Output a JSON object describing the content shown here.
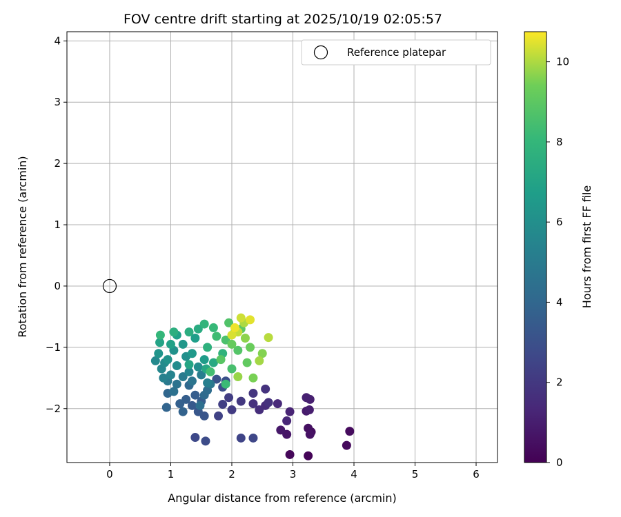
{
  "chart_data": {
    "type": "scatter",
    "title": "FOV centre drift starting at 2025/10/19 02:05:57",
    "xlabel": "Angular distance from reference (arcmin)",
    "ylabel": "Rotation from reference (arcmin)",
    "xlim": [
      -0.7,
      6.35
    ],
    "ylim": [
      -2.88,
      4.15
    ],
    "xticks": [
      0,
      1,
      2,
      3,
      4,
      5,
      6
    ],
    "yticks": [
      -2,
      -1,
      0,
      1,
      2,
      3,
      4
    ],
    "xtick_labels": [
      "0",
      "1",
      "2",
      "3",
      "4",
      "5",
      "6"
    ],
    "ytick_labels": [
      "−2",
      "−1",
      "0",
      "1",
      "2",
      "3",
      "4"
    ],
    "grid": true,
    "colormap": "viridis",
    "colorbar": {
      "label": "Hours from first FF file",
      "range": [
        0,
        10.75
      ],
      "ticks": [
        0,
        2,
        4,
        6,
        8,
        10
      ],
      "tick_labels": [
        "0",
        "2",
        "4",
        "6",
        "8",
        "10"
      ]
    },
    "reference": {
      "name": "Reference platepar",
      "x": 0,
      "y": 0
    },
    "legend": {
      "placement": "upper right",
      "entries": [
        "Reference platepar"
      ]
    },
    "points": [
      {
        "x": 3.25,
        "y": -2.77,
        "h": 0.1
      },
      {
        "x": 2.95,
        "y": -2.75,
        "h": 0.2
      },
      {
        "x": 3.88,
        "y": -2.6,
        "h": 0.3
      },
      {
        "x": 3.93,
        "y": -2.37,
        "h": 0.35
      },
      {
        "x": 3.3,
        "y": -2.38,
        "h": 0.4
      },
      {
        "x": 3.25,
        "y": -2.32,
        "h": 0.5
      },
      {
        "x": 3.28,
        "y": -2.42,
        "h": 0.6
      },
      {
        "x": 2.9,
        "y": -2.42,
        "h": 0.7
      },
      {
        "x": 2.8,
        "y": -2.35,
        "h": 0.8
      },
      {
        "x": 3.22,
        "y": -2.04,
        "h": 0.9
      },
      {
        "x": 3.27,
        "y": -2.02,
        "h": 1.0
      },
      {
        "x": 3.28,
        "y": -1.85,
        "h": 1.05
      },
      {
        "x": 3.22,
        "y": -1.82,
        "h": 1.1
      },
      {
        "x": 2.95,
        "y": -2.05,
        "h": 1.2
      },
      {
        "x": 2.9,
        "y": -2.2,
        "h": 1.3
      },
      {
        "x": 2.75,
        "y": -1.92,
        "h": 1.4
      },
      {
        "x": 2.55,
        "y": -1.95,
        "h": 1.5
      },
      {
        "x": 2.45,
        "y": -2.02,
        "h": 1.6
      },
      {
        "x": 2.35,
        "y": -1.92,
        "h": 1.7
      },
      {
        "x": 2.6,
        "y": -1.9,
        "h": 1.75
      },
      {
        "x": 2.55,
        "y": -1.68,
        "h": 1.8
      },
      {
        "x": 2.35,
        "y": -1.75,
        "h": 1.9
      },
      {
        "x": 2.15,
        "y": -1.88,
        "h": 2.0
      },
      {
        "x": 2.0,
        "y": -2.02,
        "h": 2.1
      },
      {
        "x": 1.95,
        "y": -1.82,
        "h": 2.2
      },
      {
        "x": 1.85,
        "y": -1.93,
        "h": 2.3
      },
      {
        "x": 1.78,
        "y": -2.12,
        "h": 2.4
      },
      {
        "x": 2.15,
        "y": -2.48,
        "h": 2.5
      },
      {
        "x": 2.35,
        "y": -2.48,
        "h": 2.6
      },
      {
        "x": 1.4,
        "y": -2.47,
        "h": 2.7
      },
      {
        "x": 1.57,
        "y": -2.53,
        "h": 2.8
      },
      {
        "x": 1.85,
        "y": -1.65,
        "h": 2.9
      },
      {
        "x": 1.9,
        "y": -1.55,
        "h": 3.0
      },
      {
        "x": 1.75,
        "y": -1.52,
        "h": 3.1
      },
      {
        "x": 1.55,
        "y": -2.12,
        "h": 3.2
      },
      {
        "x": 1.45,
        "y": -2.05,
        "h": 3.3
      },
      {
        "x": 1.35,
        "y": -1.95,
        "h": 3.4
      },
      {
        "x": 1.5,
        "y": -1.88,
        "h": 3.5
      },
      {
        "x": 1.4,
        "y": -1.78,
        "h": 3.55
      },
      {
        "x": 1.25,
        "y": -1.85,
        "h": 3.6
      },
      {
        "x": 1.15,
        "y": -1.92,
        "h": 3.7
      },
      {
        "x": 1.2,
        "y": -2.05,
        "h": 3.8
      },
      {
        "x": 0.93,
        "y": -1.98,
        "h": 3.9
      },
      {
        "x": 0.95,
        "y": -1.75,
        "h": 4.0
      },
      {
        "x": 1.3,
        "y": -1.62,
        "h": 4.1
      },
      {
        "x": 1.55,
        "y": -1.78,
        "h": 4.2
      },
      {
        "x": 1.6,
        "y": -1.7,
        "h": 4.3
      },
      {
        "x": 1.48,
        "y": -1.95,
        "h": 4.4
      },
      {
        "x": 1.05,
        "y": -1.72,
        "h": 4.5
      },
      {
        "x": 1.1,
        "y": -1.6,
        "h": 4.6
      },
      {
        "x": 1.35,
        "y": -1.55,
        "h": 4.7
      },
      {
        "x": 1.65,
        "y": -1.6,
        "h": 4.8
      },
      {
        "x": 0.95,
        "y": -1.55,
        "h": 4.9
      },
      {
        "x": 1.2,
        "y": -1.48,
        "h": 5.0
      },
      {
        "x": 1.5,
        "y": -1.45,
        "h": 5.1
      },
      {
        "x": 1.6,
        "y": -1.58,
        "h": 5.2
      },
      {
        "x": 0.88,
        "y": -1.5,
        "h": 5.3
      },
      {
        "x": 1.0,
        "y": -1.45,
        "h": 5.4
      },
      {
        "x": 1.3,
        "y": -1.4,
        "h": 5.5
      },
      {
        "x": 0.85,
        "y": -1.35,
        "h": 5.6
      },
      {
        "x": 0.75,
        "y": -1.22,
        "h": 5.7
      },
      {
        "x": 0.9,
        "y": -1.25,
        "h": 5.8
      },
      {
        "x": 1.1,
        "y": -1.3,
        "h": 5.85
      },
      {
        "x": 1.45,
        "y": -1.32,
        "h": 5.9
      },
      {
        "x": 1.25,
        "y": -1.15,
        "h": 6.0
      },
      {
        "x": 1.05,
        "y": -1.05,
        "h": 6.1
      },
      {
        "x": 0.95,
        "y": -1.2,
        "h": 6.2
      },
      {
        "x": 0.8,
        "y": -1.1,
        "h": 6.3
      },
      {
        "x": 1.2,
        "y": -0.95,
        "h": 6.4
      },
      {
        "x": 1.35,
        "y": -1.1,
        "h": 6.5
      },
      {
        "x": 1.55,
        "y": -1.2,
        "h": 6.6
      },
      {
        "x": 1.4,
        "y": -0.85,
        "h": 6.7
      },
      {
        "x": 1.1,
        "y": -0.8,
        "h": 6.8
      },
      {
        "x": 1.0,
        "y": -0.95,
        "h": 6.9
      },
      {
        "x": 0.82,
        "y": -0.92,
        "h": 7.0
      },
      {
        "x": 1.3,
        "y": -1.28,
        "h": 7.1
      },
      {
        "x": 1.58,
        "y": -1.35,
        "h": 7.2
      },
      {
        "x": 1.7,
        "y": -1.25,
        "h": 7.3
      },
      {
        "x": 1.45,
        "y": -0.7,
        "h": 7.4
      },
      {
        "x": 1.3,
        "y": -0.75,
        "h": 7.5
      },
      {
        "x": 1.05,
        "y": -0.75,
        "h": 7.6
      },
      {
        "x": 1.6,
        "y": -1.0,
        "h": 7.7
      },
      {
        "x": 1.85,
        "y": -1.1,
        "h": 7.8
      },
      {
        "x": 1.55,
        "y": -0.62,
        "h": 7.9
      },
      {
        "x": 0.83,
        "y": -0.8,
        "h": 8.0
      },
      {
        "x": 1.7,
        "y": -0.68,
        "h": 8.1
      },
      {
        "x": 1.9,
        "y": -1.6,
        "h": 8.2
      },
      {
        "x": 1.75,
        "y": -0.82,
        "h": 8.3
      },
      {
        "x": 1.65,
        "y": -1.4,
        "h": 8.4
      },
      {
        "x": 2.0,
        "y": -1.35,
        "h": 8.5
      },
      {
        "x": 1.9,
        "y": -0.88,
        "h": 8.6
      },
      {
        "x": 1.95,
        "y": -0.6,
        "h": 8.7
      },
      {
        "x": 2.1,
        "y": -1.05,
        "h": 8.8
      },
      {
        "x": 1.82,
        "y": -1.2,
        "h": 8.9
      },
      {
        "x": 2.15,
        "y": -0.7,
        "h": 9.0
      },
      {
        "x": 2.25,
        "y": -1.25,
        "h": 9.1
      },
      {
        "x": 2.0,
        "y": -0.95,
        "h": 9.2
      },
      {
        "x": 2.3,
        "y": -1.0,
        "h": 9.3
      },
      {
        "x": 2.05,
        "y": -0.75,
        "h": 9.4
      },
      {
        "x": 2.35,
        "y": -1.5,
        "h": 9.5
      },
      {
        "x": 2.5,
        "y": -1.1,
        "h": 9.6
      },
      {
        "x": 2.22,
        "y": -0.85,
        "h": 9.7
      },
      {
        "x": 2.1,
        "y": -1.48,
        "h": 9.8
      },
      {
        "x": 2.45,
        "y": -1.22,
        "h": 9.9
      },
      {
        "x": 2.2,
        "y": -0.6,
        "h": 10.0
      },
      {
        "x": 2.6,
        "y": -0.84,
        "h": 10.1
      },
      {
        "x": 2.1,
        "y": -0.75,
        "h": 10.2
      },
      {
        "x": 2.15,
        "y": -0.52,
        "h": 10.3
      },
      {
        "x": 2.0,
        "y": -0.8,
        "h": 10.4
      },
      {
        "x": 2.3,
        "y": -0.55,
        "h": 10.5
      },
      {
        "x": 2.05,
        "y": -0.68,
        "h": 10.6
      }
    ]
  }
}
